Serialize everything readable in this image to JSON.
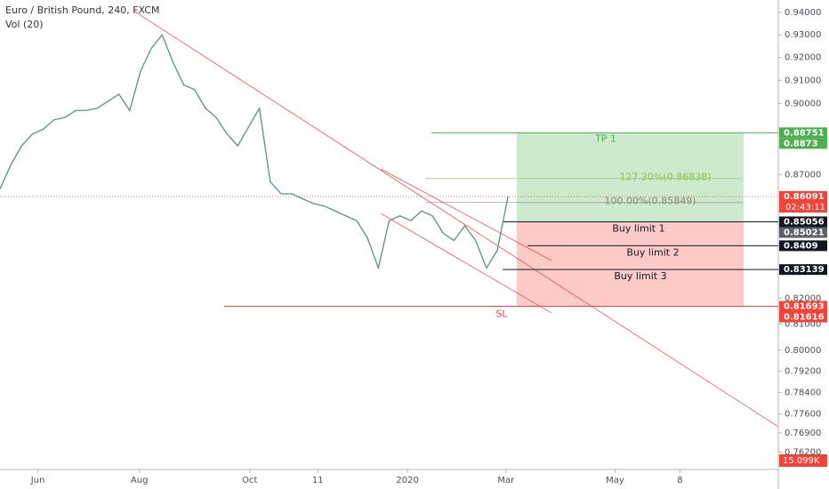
{
  "chart_data": {
    "type": "line",
    "title": "Euro / British Pound, 240, FXCM",
    "indicator": "Vol (20)",
    "series": [
      {
        "color": "#5b8f86",
        "values": [
          0.864,
          0.874,
          0.882,
          0.887,
          0.889,
          0.893,
          0.894,
          0.897,
          0.897,
          0.898,
          0.901,
          0.904,
          0.897,
          0.914,
          0.924,
          0.93,
          0.918,
          0.908,
          0.906,
          0.898,
          0.894,
          0.887,
          0.882,
          0.89,
          0.898,
          0.867,
          0.862,
          0.862,
          0.86,
          0.858,
          0.857,
          0.855,
          0.853,
          0.851,
          0.844,
          0.832,
          0.851,
          0.853,
          0.851,
          0.855,
          0.853,
          0.846,
          0.843,
          0.849,
          0.843,
          0.832,
          0.839,
          0.86091
        ]
      }
    ],
    "xlim": [
      0,
      72
    ],
    "xticks": [
      {
        "value": 3.5,
        "label": "Jun"
      },
      {
        "value": 12.9,
        "label": "Aug"
      },
      {
        "value": 23.1,
        "label": "Oct"
      },
      {
        "value": 29.4,
        "label": "11"
      },
      {
        "value": 37.7,
        "label": "2020"
      },
      {
        "value": 46.8,
        "label": "Mar"
      },
      {
        "value": 56.9,
        "label": "May"
      },
      {
        "value": 62.9,
        "label": "8"
      }
    ],
    "ylim": [
      0.7557,
      0.9456
    ],
    "log": true,
    "grid": false,
    "yticks": [
      {
        "value": 0.94,
        "label": "0.94000"
      },
      {
        "value": 0.93,
        "label": "0.93000"
      },
      {
        "value": 0.92,
        "label": "0.92000"
      },
      {
        "value": 0.91,
        "label": "0.91000"
      },
      {
        "value": 0.9,
        "label": "0.90000"
      },
      {
        "value": 0.87,
        "label": "0.87000"
      },
      {
        "value": 0.82,
        "label": "0.82000"
      },
      {
        "value": 0.81,
        "label": "0.81000"
      },
      {
        "value": 0.8,
        "label": "0.80000"
      },
      {
        "value": 0.792,
        "label": "0.79200"
      },
      {
        "value": 0.784,
        "label": "0.78400"
      },
      {
        "value": 0.776,
        "label": "0.77600"
      },
      {
        "value": 0.769,
        "label": "0.76900"
      },
      {
        "value": 0.762,
        "label": "0.76200"
      }
    ],
    "levels": [
      {
        "label": "TP 1",
        "value": 0.88751,
        "color": "#4caf50"
      },
      {
        "label": "127.20%(0.86838)",
        "value": 0.86838,
        "color": "#8bc34a"
      },
      {
        "label": "100.00%(0.85849)",
        "value": 0.85849,
        "color": "#888888"
      },
      {
        "label": "Buy limit 1",
        "value": 0.85056,
        "color": "#131722"
      },
      {
        "label": "Buy limit 2",
        "value": 0.8409,
        "color": "#131722"
      },
      {
        "label": "Buy limit 3",
        "value": 0.83139,
        "color": "#131722"
      },
      {
        "label": "SL",
        "value": 0.81693,
        "color": "#f44336"
      }
    ],
    "tags": [
      {
        "value": 0.88751,
        "color": "#4caf50"
      },
      {
        "value": 0.8873,
        "color": "#4caf50"
      },
      {
        "value": 0.86091,
        "color": "#f44336",
        "countdown": "02:43:11"
      },
      {
        "value": 0.85056,
        "color": "#131722"
      },
      {
        "value": 0.85021,
        "color": "#5d606b"
      },
      {
        "value": 0.8409,
        "color": "#131722"
      },
      {
        "value": 0.83139,
        "color": "#131722"
      },
      {
        "value": 0.81693,
        "color": "#f44336"
      },
      {
        "value": 0.81616,
        "color": "#f44336"
      }
    ],
    "volume_tag": {
      "value": 15099,
      "label": "15.099K",
      "color": "#f44336"
    }
  }
}
